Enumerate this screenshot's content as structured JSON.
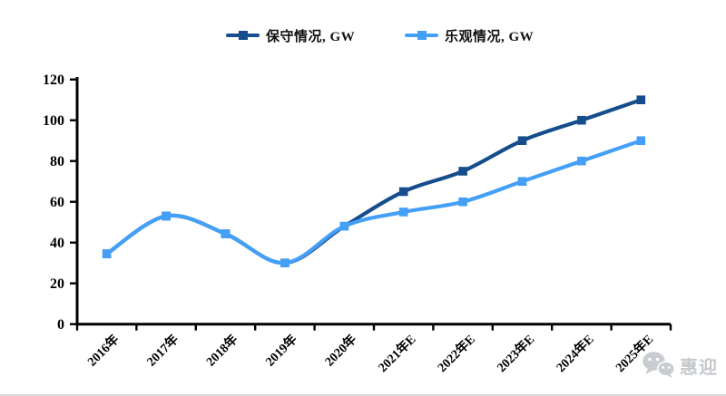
{
  "chart_data": {
    "type": "line",
    "title": "",
    "categories": [
      "2016年",
      "2017年",
      "2018年",
      "2019年",
      "2020年",
      "2021年E",
      "2022年E",
      "2023年E",
      "2024年E",
      "2025年E"
    ],
    "series": [
      {
        "name": "保守情况, GW",
        "color": "#164d8c",
        "values": [
          34.5,
          53,
          44.3,
          30,
          48,
          65,
          75,
          90,
          100,
          110
        ]
      },
      {
        "name": "乐观情况, GW",
        "color": "#44a0f7",
        "values": [
          34.5,
          53,
          44.3,
          30,
          48,
          55,
          60,
          70,
          80,
          90
        ]
      }
    ],
    "xlabel": "",
    "ylabel": "",
    "ylim": [
      0,
      120
    ],
    "yticks": [
      0,
      20,
      40,
      60,
      80,
      100,
      120
    ],
    "grid": false,
    "legend_position": "top",
    "line_style": "smooth",
    "marker": "square",
    "axis_color": "#000000"
  },
  "watermark": {
    "icon": "wechat-icon",
    "text": "惠迎",
    "color": "#c9ccd0"
  }
}
